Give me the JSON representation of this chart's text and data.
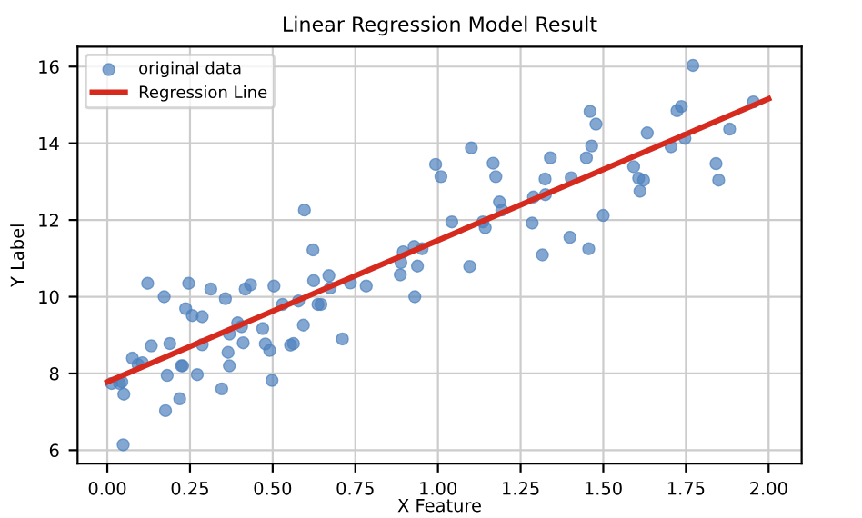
{
  "chart_data": {
    "type": "scatter",
    "title": "Linear Regression Model Result",
    "xlabel": "X Feature",
    "ylabel": "Y Label",
    "xlim": [
      -0.09,
      2.1
    ],
    "ylim": [
      5.65,
      16.52
    ],
    "xticks": [
      {
        "value": 0,
        "label": "0.00"
      },
      {
        "value": 0.25,
        "label": "0.25"
      },
      {
        "value": 0.5,
        "label": "0.50"
      },
      {
        "value": 0.75,
        "label": "0.75"
      },
      {
        "value": 1,
        "label": "1.00"
      },
      {
        "value": 1.25,
        "label": "1.25"
      },
      {
        "value": 1.5,
        "label": "1.50"
      },
      {
        "value": 1.75,
        "label": "1.75"
      },
      {
        "value": 2,
        "label": "2.00"
      }
    ],
    "yticks": [
      6,
      8,
      10,
      12,
      14,
      16
    ],
    "grid": true,
    "legend": "top left",
    "series": [
      {
        "name": "original data",
        "marker": "circle",
        "color": "#4f81bd",
        "x": [
          0.013,
          0.037,
          0.044,
          0.05,
          0.048,
          0.076,
          0.093,
          0.106,
          0.122,
          0.133,
          0.172,
          0.176,
          0.181,
          0.189,
          0.219,
          0.224,
          0.228,
          0.237,
          0.246,
          0.257,
          0.272,
          0.287,
          0.287,
          0.313,
          0.346,
          0.357,
          0.365,
          0.369,
          0.369,
          0.394,
          0.406,
          0.411,
          0.417,
          0.433,
          0.47,
          0.478,
          0.491,
          0.498,
          0.504,
          0.53,
          0.554,
          0.563,
          0.578,
          0.593,
          0.596,
          0.622,
          0.624,
          0.637,
          0.646,
          0.67,
          0.674,
          0.711,
          0.735,
          0.783,
          0.886,
          0.888,
          0.895,
          0.928,
          0.93,
          0.938,
          0.952,
          0.993,
          1.009,
          1.042,
          1.096,
          1.101,
          1.136,
          1.143,
          1.167,
          1.175,
          1.186,
          1.193,
          1.285,
          1.289,
          1.316,
          1.324,
          1.325,
          1.34,
          1.399,
          1.403,
          1.449,
          1.456,
          1.46,
          1.465,
          1.478,
          1.5,
          1.592,
          1.607,
          1.622,
          1.611,
          1.633,
          1.705,
          1.723,
          1.736,
          1.747,
          1.771,
          1.841,
          1.849,
          1.882,
          1.954
        ],
        "values": [
          7.74,
          7.74,
          7.78,
          7.46,
          6.14,
          8.4,
          8.23,
          8.28,
          10.35,
          8.72,
          10.0,
          7.03,
          7.95,
          8.78,
          7.34,
          8.2,
          8.2,
          9.69,
          10.35,
          9.51,
          7.97,
          9.48,
          8.75,
          10.2,
          7.6,
          9.95,
          8.55,
          8.2,
          9.03,
          9.32,
          9.22,
          8.8,
          10.2,
          10.31,
          9.17,
          8.77,
          8.6,
          7.82,
          10.28,
          9.8,
          8.74,
          8.78,
          9.89,
          9.26,
          12.26,
          11.22,
          10.42,
          9.8,
          9.8,
          10.55,
          10.23,
          8.9,
          10.36,
          10.28,
          10.57,
          10.89,
          11.17,
          11.31,
          10.0,
          10.8,
          11.25,
          13.45,
          13.13,
          11.95,
          10.79,
          13.88,
          11.95,
          11.8,
          13.48,
          13.13,
          12.47,
          12.26,
          11.92,
          12.6,
          11.09,
          13.07,
          12.66,
          13.62,
          11.55,
          13.1,
          13.62,
          11.25,
          14.83,
          13.93,
          14.5,
          12.12,
          13.39,
          13.09,
          13.04,
          12.75,
          14.27,
          13.91,
          14.85,
          14.96,
          14.13,
          16.03,
          13.47,
          13.04,
          14.37,
          15.08
        ]
      },
      {
        "name": "Regression Line",
        "type": "line",
        "line_style": "solid",
        "color": "#d62a1e",
        "x": [
          0,
          2
        ],
        "values": [
          7.78,
          15.16
        ]
      }
    ]
  }
}
